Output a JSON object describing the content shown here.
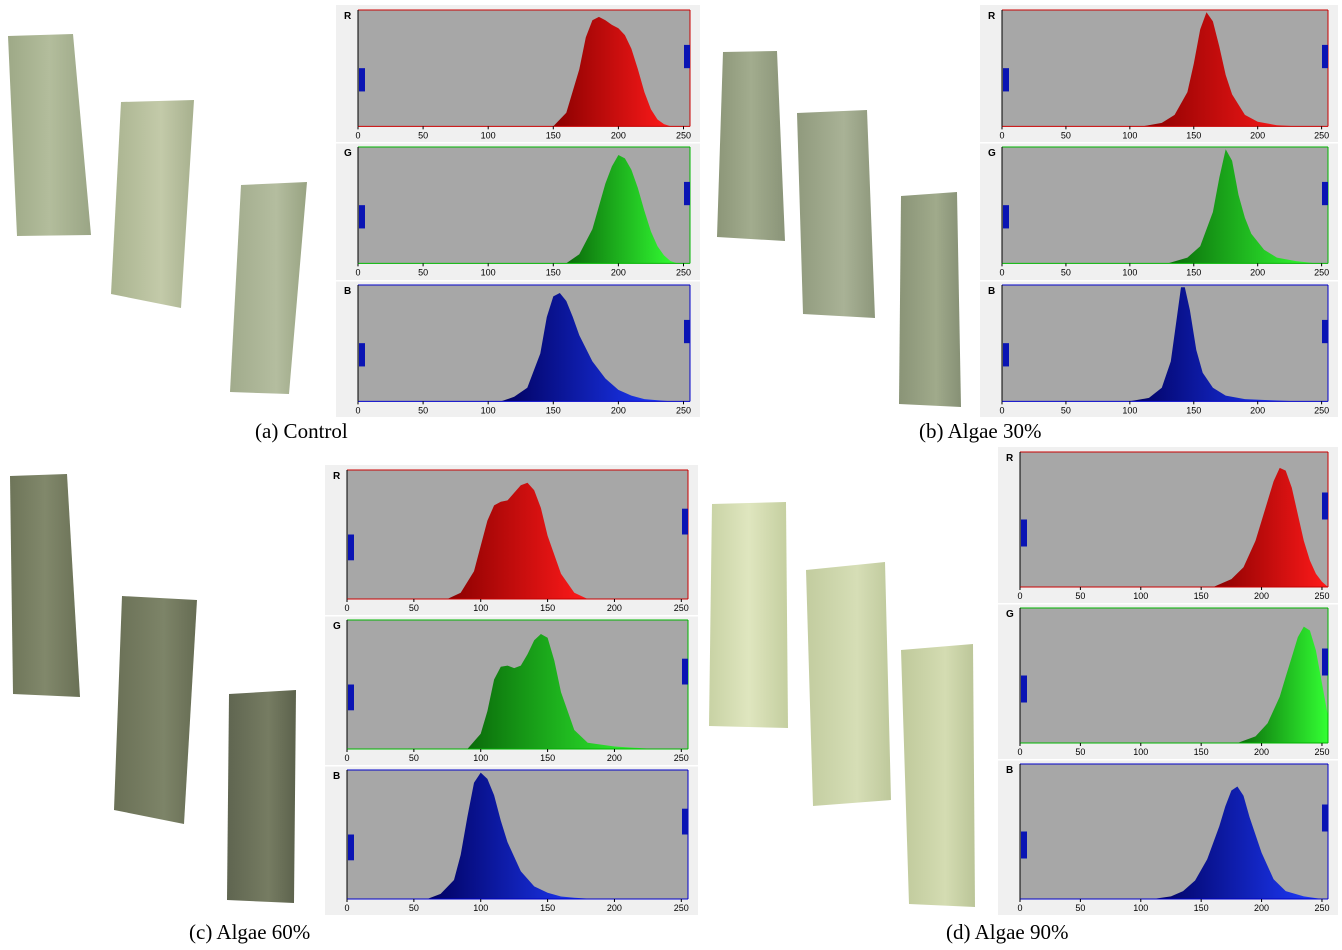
{
  "colors": {
    "plot_bg": "#a7a7a7",
    "panel_bg": "#f0f0f0",
    "marker": "#0a14b4",
    "red_fill": [
      "#8a0000",
      "#ff1a1a"
    ],
    "green_fill": [
      "#0a6a0a",
      "#33ff33"
    ],
    "blue_fill": [
      "#00005e",
      "#1e3cff"
    ]
  },
  "chart_data": [
    {
      "caption": "(a) Control",
      "type": "area",
      "x_ticks": [
        0,
        50,
        100,
        150,
        200,
        250
      ],
      "xlim": [
        0,
        255
      ],
      "channels": [
        {
          "letter": "R",
          "color": "red",
          "x": [
            150,
            160,
            170,
            175,
            180,
            185,
            190,
            195,
            200,
            205,
            210,
            215,
            220,
            225,
            230,
            235,
            240
          ],
          "y": [
            0,
            0.12,
            0.5,
            0.78,
            0.93,
            0.96,
            0.93,
            0.89,
            0.86,
            0.8,
            0.68,
            0.5,
            0.3,
            0.15,
            0.06,
            0.02,
            0
          ]
        },
        {
          "letter": "G",
          "color": "green",
          "x": [
            160,
            170,
            180,
            190,
            195,
            200,
            205,
            210,
            215,
            220,
            225,
            230,
            235,
            240,
            245
          ],
          "y": [
            0,
            0.08,
            0.3,
            0.7,
            0.85,
            0.95,
            0.92,
            0.82,
            0.66,
            0.46,
            0.28,
            0.15,
            0.07,
            0.02,
            0
          ]
        },
        {
          "letter": "B",
          "color": "blue",
          "x": [
            110,
            120,
            130,
            140,
            145,
            150,
            155,
            160,
            165,
            170,
            180,
            190,
            200,
            210,
            220,
            230,
            240
          ],
          "y": [
            0,
            0.04,
            0.12,
            0.42,
            0.74,
            0.92,
            0.95,
            0.88,
            0.74,
            0.58,
            0.35,
            0.2,
            0.1,
            0.05,
            0.02,
            0.01,
            0
          ]
        }
      ]
    },
    {
      "caption": "(b) Algae 30%",
      "type": "area",
      "x_ticks": [
        0,
        50,
        100,
        150,
        200,
        250
      ],
      "xlim": [
        0,
        255
      ],
      "channels": [
        {
          "letter": "R",
          "color": "red",
          "x": [
            110,
            125,
            135,
            145,
            150,
            155,
            160,
            165,
            170,
            175,
            180,
            190,
            200,
            215,
            230
          ],
          "y": [
            0,
            0.03,
            0.1,
            0.3,
            0.55,
            0.85,
            1.0,
            0.92,
            0.7,
            0.45,
            0.28,
            0.1,
            0.04,
            0.01,
            0
          ]
        },
        {
          "letter": "G",
          "color": "green",
          "x": [
            130,
            145,
            155,
            165,
            170,
            175,
            180,
            185,
            190,
            195,
            205,
            215,
            230,
            245
          ],
          "y": [
            0,
            0.05,
            0.15,
            0.45,
            0.75,
            1.0,
            0.9,
            0.6,
            0.4,
            0.26,
            0.12,
            0.05,
            0.02,
            0
          ]
        },
        {
          "letter": "B",
          "color": "blue",
          "x": [
            100,
            115,
            125,
            132,
            137,
            140,
            143,
            147,
            152,
            157,
            165,
            175,
            190,
            210,
            230
          ],
          "y": [
            0,
            0.03,
            0.12,
            0.35,
            0.75,
            1.0,
            1.0,
            0.8,
            0.45,
            0.25,
            0.12,
            0.05,
            0.02,
            0.01,
            0
          ]
        }
      ]
    },
    {
      "caption": "(c) Algae 60%",
      "type": "area",
      "x_ticks": [
        0,
        50,
        100,
        150,
        200,
        250
      ],
      "xlim": [
        0,
        255
      ],
      "channels": [
        {
          "letter": "R",
          "color": "red",
          "x": [
            75,
            85,
            95,
            100,
            105,
            110,
            115,
            120,
            125,
            130,
            135,
            140,
            145,
            150,
            160,
            170,
            180
          ],
          "y": [
            0,
            0.05,
            0.22,
            0.42,
            0.62,
            0.74,
            0.77,
            0.78,
            0.84,
            0.9,
            0.92,
            0.86,
            0.72,
            0.5,
            0.2,
            0.05,
            0
          ]
        },
        {
          "letter": "G",
          "color": "green",
          "x": [
            90,
            100,
            105,
            110,
            115,
            120,
            125,
            130,
            135,
            140,
            145,
            150,
            155,
            160,
            170,
            180,
            200,
            230
          ],
          "y": [
            0,
            0.12,
            0.3,
            0.55,
            0.65,
            0.66,
            0.64,
            0.66,
            0.75,
            0.86,
            0.91,
            0.88,
            0.7,
            0.45,
            0.15,
            0.05,
            0.02,
            0
          ]
        },
        {
          "letter": "B",
          "color": "blue",
          "x": [
            60,
            70,
            80,
            85,
            90,
            95,
            100,
            105,
            110,
            115,
            120,
            130,
            140,
            150,
            160,
            170,
            185
          ],
          "y": [
            0,
            0.04,
            0.15,
            0.35,
            0.65,
            0.92,
            1.0,
            0.95,
            0.82,
            0.62,
            0.45,
            0.22,
            0.1,
            0.05,
            0.02,
            0.01,
            0
          ]
        }
      ]
    },
    {
      "caption": "(d) Algae 90%",
      "type": "area",
      "x_ticks": [
        0,
        50,
        100,
        150,
        200,
        250
      ],
      "xlim": [
        0,
        255
      ],
      "channels": [
        {
          "letter": "R",
          "color": "red",
          "x": [
            160,
            175,
            185,
            195,
            200,
            205,
            210,
            215,
            220,
            225,
            230,
            235,
            240,
            245,
            250,
            255
          ],
          "y": [
            0,
            0.06,
            0.15,
            0.35,
            0.5,
            0.65,
            0.8,
            0.9,
            0.88,
            0.75,
            0.55,
            0.35,
            0.2,
            0.1,
            0.04,
            0
          ]
        },
        {
          "letter": "G",
          "color": "green",
          "x": [
            180,
            195,
            205,
            215,
            220,
            225,
            230,
            235,
            240,
            245,
            250,
            255
          ],
          "y": [
            0,
            0.05,
            0.15,
            0.35,
            0.5,
            0.65,
            0.8,
            0.88,
            0.85,
            0.7,
            0.45,
            0.2
          ]
        },
        {
          "letter": "B",
          "color": "blue",
          "x": [
            110,
            125,
            135,
            145,
            155,
            165,
            170,
            175,
            180,
            185,
            190,
            200,
            210,
            220,
            235,
            250
          ],
          "y": [
            0,
            0.02,
            0.06,
            0.14,
            0.3,
            0.55,
            0.7,
            0.82,
            0.85,
            0.78,
            0.62,
            0.35,
            0.15,
            0.06,
            0.02,
            0
          ]
        }
      ]
    }
  ]
}
